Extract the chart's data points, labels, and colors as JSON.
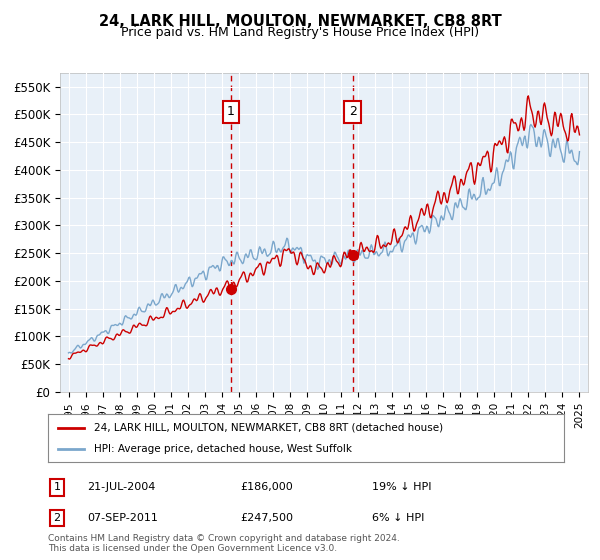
{
  "title": "24, LARK HILL, MOULTON, NEWMARKET, CB8 8RT",
  "subtitle": "Price paid vs. HM Land Registry's House Price Index (HPI)",
  "ylim": [
    0,
    575000
  ],
  "yticks": [
    0,
    50000,
    100000,
    150000,
    200000,
    250000,
    300000,
    350000,
    400000,
    450000,
    500000,
    550000
  ],
  "background_color": "#ffffff",
  "plot_bg_color": "#e8f0f8",
  "grid_color": "#ffffff",
  "sale1_date_x": 2004.54,
  "sale1_price": 186000,
  "sale2_date_x": 2011.68,
  "sale2_price": 247500,
  "sale1_label": "21-JUL-2004",
  "sale1_price_label": "£186,000",
  "sale1_pct_label": "19% ↓ HPI",
  "sale2_label": "07-SEP-2011",
  "sale2_price_label": "£247,500",
  "sale2_pct_label": "6% ↓ HPI",
  "legend1": "24, LARK HILL, MOULTON, NEWMARKET, CB8 8RT (detached house)",
  "legend2": "HPI: Average price, detached house, West Suffolk",
  "footnote": "Contains HM Land Registry data © Crown copyright and database right 2024.\nThis data is licensed under the Open Government Licence v3.0.",
  "line_color_red": "#cc0000",
  "line_color_blue": "#7ba7cc",
  "sale_marker_color": "#cc0000",
  "dashed_line_color": "#cc0000",
  "box_color": "#cc0000",
  "xmin": 1995,
  "xmax": 2025
}
